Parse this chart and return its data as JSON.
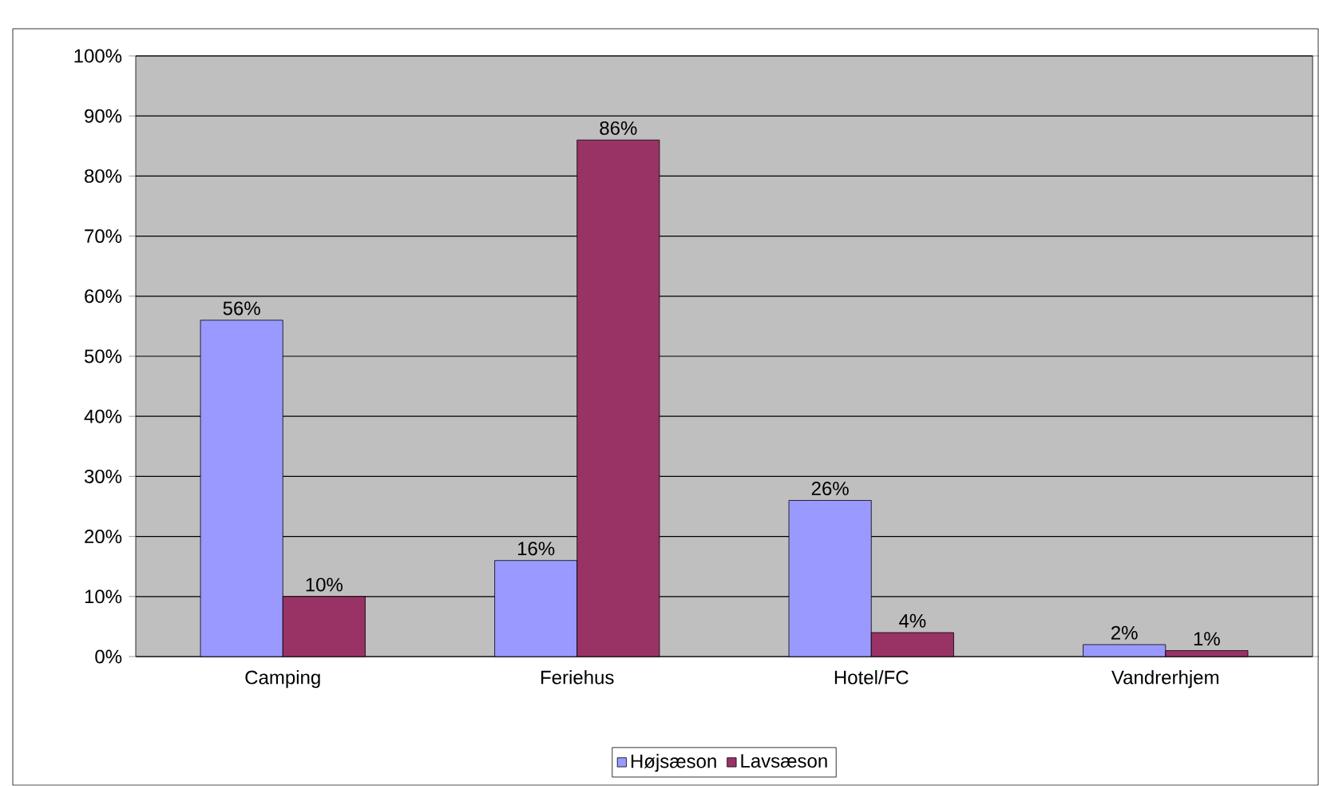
{
  "chart_data": {
    "type": "bar",
    "categories": [
      "Camping",
      "Feriehus",
      "Hotel/FC",
      "Vandrerhjem"
    ],
    "series": [
      {
        "name": "Højsæson",
        "color": "#9999ff",
        "values": [
          56,
          16,
          26,
          2
        ],
        "value_labels": [
          "56%",
          "16%",
          "26%",
          "2%"
        ]
      },
      {
        "name": "Lavsæson",
        "color": "#993366",
        "values": [
          10,
          86,
          4,
          1
        ],
        "value_labels": [
          "10%",
          "86%",
          "4%",
          "1%"
        ]
      }
    ],
    "ylim": [
      0,
      100
    ],
    "yticks": [
      {
        "value": 0,
        "label": "0%"
      },
      {
        "value": 10,
        "label": "10%"
      },
      {
        "value": 20,
        "label": "20%"
      },
      {
        "value": 30,
        "label": "30%"
      },
      {
        "value": 40,
        "label": "40%"
      },
      {
        "value": 50,
        "label": "50%"
      },
      {
        "value": 60,
        "label": "60%"
      },
      {
        "value": 70,
        "label": "70%"
      },
      {
        "value": 80,
        "label": "80%"
      },
      {
        "value": 90,
        "label": "90%"
      },
      {
        "value": 100,
        "label": "100%"
      }
    ],
    "grid": "y",
    "legend": "bottom"
  }
}
